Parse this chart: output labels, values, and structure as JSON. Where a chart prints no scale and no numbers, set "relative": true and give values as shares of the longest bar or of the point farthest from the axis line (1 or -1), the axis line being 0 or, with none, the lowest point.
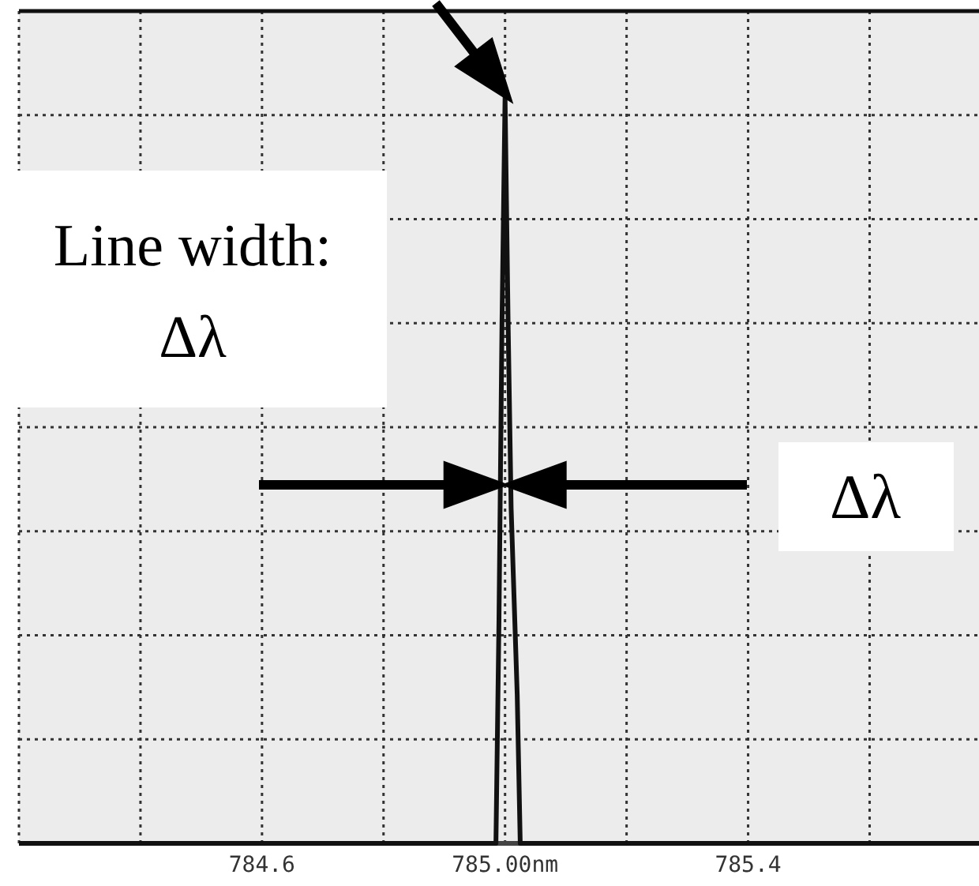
{
  "chart_data": {
    "type": "line",
    "relative": true,
    "x": [
      784.2,
      784.985,
      784.99,
      784.995,
      785.0,
      785.005,
      785.01,
      785.02,
      785.025,
      785.78
    ],
    "series": [
      {
        "color": "#111111",
        "values": [
          0,
          0,
          0.3,
          0.7,
          1,
          0.7,
          0.45,
          0.2,
          0,
          0
        ]
      }
    ],
    "xlim": [
      784.2,
      785.78
    ],
    "xticks": [
      {
        "value": 784.2,
        "label": null
      },
      {
        "value": 784.4,
        "label": null
      },
      {
        "value": 784.6,
        "label": "784.6"
      },
      {
        "value": 784.8,
        "label": null
      },
      {
        "value": 785.0,
        "label": "785.00nm"
      },
      {
        "value": 785.2,
        "label": null
      },
      {
        "value": 785.4,
        "label": "785.4"
      },
      {
        "value": 785.6,
        "label": null
      }
    ],
    "grid": true,
    "marker": "none",
    "line_style": "solid",
    "annotations": [
      "Line width:\nΔλ",
      "Δλ"
    ]
  }
}
